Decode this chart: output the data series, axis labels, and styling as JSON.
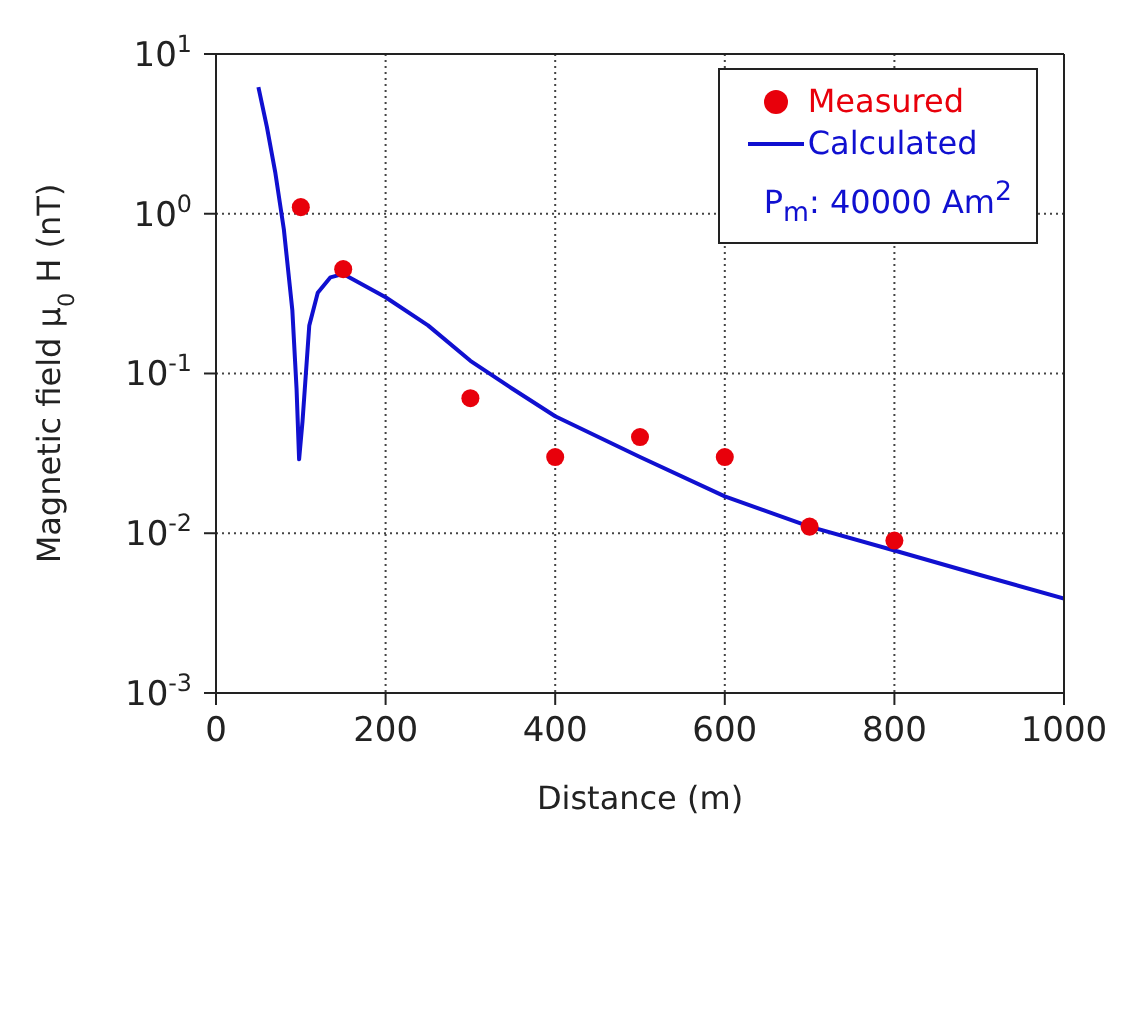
{
  "chart_data": {
    "type": "scatter",
    "xlabel": "Distance (m)",
    "ylabel": "Magnetic field μ$_{0}$ H (nT)",
    "log": "y",
    "grid": true,
    "legend": "top right",
    "xlim": [
      0,
      1000
    ],
    "xticks": [
      0,
      200,
      400,
      600,
      800,
      1000
    ],
    "ylim": [
      0.001,
      10
    ],
    "yticks": [
      {
        "value": 0.001,
        "label": "10$^{-3}$"
      },
      {
        "value": 0.01,
        "label": "10$^{-2}$"
      },
      {
        "value": 0.1,
        "label": "10$^{-1}$"
      },
      {
        "value": 1,
        "label": "10$^{0}$"
      },
      {
        "value": 10,
        "label": "10$^{1}$"
      }
    ],
    "annotations": [
      "P$_{m}$: 40000 Am$^{2}$"
    ],
    "series": [
      {
        "name": "Measured",
        "marker": "circle",
        "color": "#e8000b",
        "x": [
          100,
          150,
          300,
          400,
          500,
          600,
          700,
          800
        ],
        "values": [
          1.1,
          0.45,
          0.07,
          0.03,
          0.04,
          0.03,
          0.011,
          0.009
        ]
      },
      {
        "name": "Calculated",
        "type": "line",
        "marker": "none",
        "line_style": "solid",
        "color": "#1010d0",
        "x": [
          50,
          60,
          70,
          80,
          90,
          95,
          98,
          102,
          110,
          120,
          135,
          150,
          200,
          250,
          300,
          350,
          400,
          500,
          600,
          700,
          800,
          900,
          1000
        ],
        "values": [
          6.2,
          3.5,
          1.8,
          0.8,
          0.25,
          0.08,
          0.029,
          0.05,
          0.2,
          0.32,
          0.4,
          0.42,
          0.3,
          0.2,
          0.12,
          0.08,
          0.054,
          0.03,
          0.017,
          0.011,
          0.0078,
          0.0055,
          0.0039
        ]
      }
    ]
  }
}
